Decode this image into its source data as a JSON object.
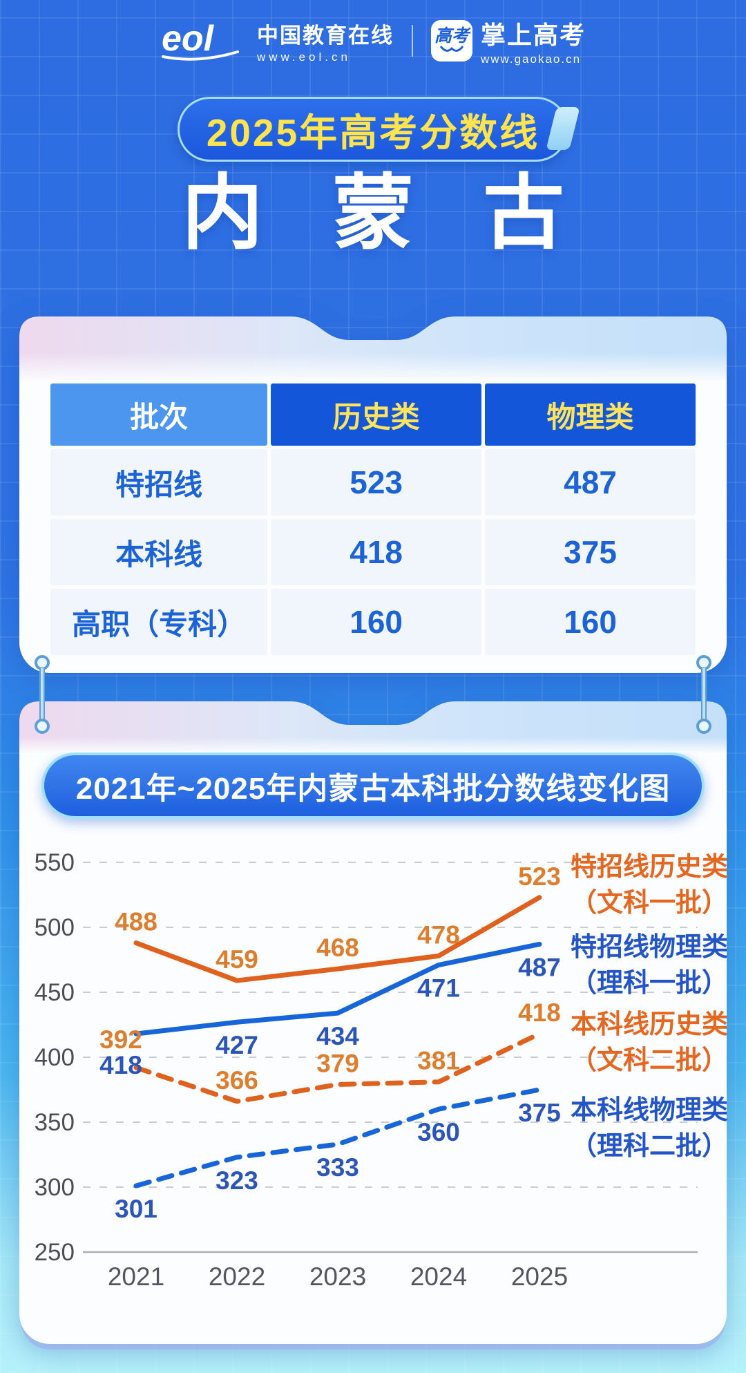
{
  "header": {
    "brand_left": {
      "logo_text": "eol",
      "name": "中国教育在线",
      "url": "www.eol.cn"
    },
    "brand_right": {
      "badge_text": "高考",
      "name": "掌上高考",
      "url": "www.gaokao.cn"
    }
  },
  "banner": {
    "text": "2025年高考分数线"
  },
  "province": "内蒙古",
  "score_table": {
    "columns": [
      "批次",
      "历史类",
      "物理类"
    ],
    "rows": [
      {
        "batch": "特招线",
        "history": "523",
        "physics": "487"
      },
      {
        "batch": "本科线",
        "history": "418",
        "physics": "375"
      },
      {
        "batch": "高职（专科）",
        "history": "160",
        "physics": "160"
      }
    ]
  },
  "chart_title": "2021年~2025年内蒙古本科批分数线变化图",
  "chart_data": {
    "type": "line",
    "title": "2021年~2025年内蒙古本科批分数线变化图",
    "x": [
      "2021",
      "2022",
      "2023",
      "2024",
      "2025"
    ],
    "series": [
      {
        "name": "特招线历史类",
        "subtitle": "（文科一批）",
        "values": [
          488,
          459,
          468,
          478,
          523
        ],
        "color": "#e0611d",
        "label_color": "#dd7e2f",
        "legend_color": "#e4661f",
        "style": "solid",
        "label_position": "above"
      },
      {
        "name": "特招线物理类",
        "subtitle": "（理科一批）",
        "values": [
          418,
          427,
          434,
          471,
          487
        ],
        "color": "#1766d9",
        "label_color": "#2c55b8",
        "legend_color": "#2355c9",
        "style": "solid",
        "label_position": "below",
        "label_dx": [
          -22,
          0,
          0,
          0,
          0
        ],
        "label_dy": [
          12,
          0,
          0,
          0,
          0
        ]
      },
      {
        "name": "本科线历史类",
        "subtitle": "（文科二批）",
        "values": [
          392,
          366,
          379,
          381,
          418
        ],
        "color": "#e0611d",
        "label_color": "#dd7e2f",
        "legend_color": "#e4661f",
        "style": "dashed",
        "label_position": "above",
        "label_dx": [
          -22,
          0,
          0,
          0,
          0
        ],
        "label_dy": [
          -10,
          0,
          0,
          0,
          0
        ]
      },
      {
        "name": "本科线物理类",
        "subtitle": "（理科二批）",
        "values": [
          301,
          323,
          333,
          360,
          375
        ],
        "color": "#1766d9",
        "label_color": "#2c55b8",
        "legend_color": "#2355c9",
        "style": "dashed",
        "label_position": "below"
      }
    ],
    "ylim": [
      250,
      550
    ],
    "yticks": [
      550,
      500,
      450,
      400,
      350,
      300,
      250
    ],
    "grid": "horizontal-dashed",
    "legend_position": "right"
  }
}
